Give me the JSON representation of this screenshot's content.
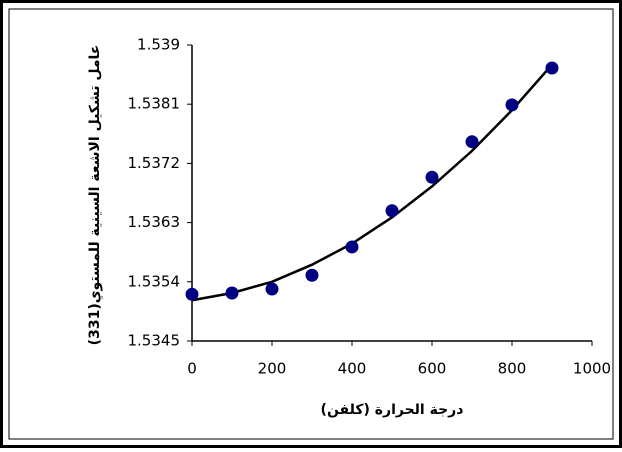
{
  "chart_data": {
    "type": "scatter",
    "xlabel": "درجة الحرارة (كلفن)",
    "ylabel": "عامل تشكيل الاشعة السينية للمستوي(331)",
    "x": [
      0,
      100,
      200,
      300,
      400,
      500,
      600,
      700,
      800,
      900
    ],
    "values": [
      1.53521,
      1.53523,
      1.53529,
      1.5355,
      1.53593,
      1.53648,
      1.53699,
      1.53753,
      1.53809,
      1.53865
    ],
    "color": "#000080",
    "curve": {
      "x": [
        0,
        100,
        200,
        300,
        400,
        500,
        600,
        700,
        800,
        900
      ],
      "values": [
        1.53512,
        1.53523,
        1.5354,
        1.53566,
        1.53598,
        1.53638,
        1.53685,
        1.53739,
        1.53801,
        1.5387
      ],
      "color": "#000000"
    },
    "xlim": [
      0,
      1000
    ],
    "xticks": [
      0,
      200,
      400,
      600,
      800,
      1000
    ],
    "ylim": [
      1.5345,
      1.539
    ],
    "yticks": [
      1.5345,
      1.5354,
      1.5363,
      1.5372,
      1.5381,
      1.539
    ]
  }
}
